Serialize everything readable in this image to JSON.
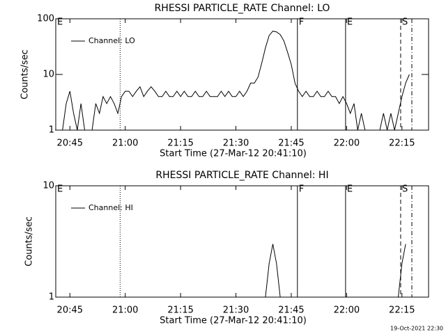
{
  "chart_data": [
    {
      "type": "line",
      "title": "RHESSI PARTICLE_RATE Channel: LO",
      "xlabel": "Start Time (27-Mar-12 20:41:10)",
      "ylabel": "Counts/sec",
      "log_y": true,
      "ylim": [
        1,
        100
      ],
      "yticks": [
        1,
        10,
        100
      ],
      "xlim": [
        "20:41:10",
        "22:22:13"
      ],
      "xticks": [
        "20:45",
        "21:00",
        "21:15",
        "21:30",
        "21:45",
        "22:00",
        "22:15"
      ],
      "legend": "upper left",
      "x": [
        "20:41",
        "20:42",
        "20:43",
        "20:44",
        "20:45",
        "20:46",
        "20:47",
        "20:48",
        "20:49",
        "20:50",
        "20:51",
        "20:52",
        "20:53",
        "20:54",
        "20:55",
        "20:56",
        "20:57",
        "20:58",
        "20:59",
        "21:00",
        "21:01",
        "21:02",
        "21:03",
        "21:04",
        "21:05",
        "21:06",
        "21:07",
        "21:08",
        "21:09",
        "21:10",
        "21:11",
        "21:12",
        "21:13",
        "21:14",
        "21:15",
        "21:16",
        "21:17",
        "21:18",
        "21:19",
        "21:20",
        "21:21",
        "21:22",
        "21:23",
        "21:24",
        "21:25",
        "21:26",
        "21:27",
        "21:28",
        "21:29",
        "21:30",
        "21:31",
        "21:32",
        "21:33",
        "21:34",
        "21:35",
        "21:36",
        "21:37",
        "21:38",
        "21:39",
        "21:40",
        "21:41",
        "21:42",
        "21:43",
        "21:44",
        "21:45",
        "21:46",
        "21:47",
        "21:48",
        "21:49",
        "21:50",
        "21:51",
        "21:52",
        "21:53",
        "21:54",
        "21:55",
        "21:56",
        "21:57",
        "21:58",
        "21:59",
        "22:00",
        "22:01",
        "22:02",
        "22:03",
        "22:04",
        "22:05",
        "22:06",
        "22:07",
        "22:08",
        "22:09",
        "22:10",
        "22:11",
        "22:12",
        "22:13",
        "22:14",
        "22:15",
        "22:16",
        "22:17"
      ],
      "series": [
        {
          "name": "Channel: LO",
          "color": "#000000",
          "values": [
            1,
            1,
            1,
            3,
            5,
            2,
            1,
            3,
            1,
            1,
            1,
            3,
            2,
            4,
            3,
            4,
            3,
            2,
            4,
            5,
            5,
            4,
            5,
            6,
            4,
            5,
            6,
            5,
            4,
            4,
            5,
            4,
            4,
            5,
            4,
            5,
            4,
            4,
            5,
            4,
            4,
            5,
            4,
            4,
            4,
            5,
            4,
            5,
            4,
            4,
            5,
            4,
            5,
            7,
            7,
            9,
            16,
            30,
            50,
            60,
            58,
            52,
            40,
            25,
            15,
            7,
            5,
            4,
            5,
            4,
            4,
            5,
            4,
            4,
            5,
            4,
            4,
            3,
            4,
            3,
            2,
            3,
            1,
            2,
            1,
            1,
            1,
            1,
            1,
            2,
            1,
            2,
            1,
            2,
            4,
            7,
            10
          ]
        }
      ],
      "vlines": [
        {
          "x": "20:58:37",
          "style": "dotted"
        },
        {
          "x": "21:46:40",
          "style": "solid"
        },
        {
          "x": "21:59:43",
          "style": "solid"
        },
        {
          "x": "22:14:39",
          "style": "dashed"
        },
        {
          "x": "22:17:41",
          "style": "dashdot"
        }
      ],
      "annotations": [
        {
          "x": "20:41:10",
          "label": "E"
        },
        {
          "x": "21:46:40",
          "label": "F"
        },
        {
          "x": "21:59:43",
          "label": "E"
        },
        {
          "x": "22:14:39",
          "label": "S"
        }
      ]
    },
    {
      "type": "line",
      "title": "RHESSI PARTICLE_RATE Channel: HI",
      "xlabel": "Start Time (27-Mar-12 20:41:10)",
      "ylabel": "Counts/sec",
      "log_y": true,
      "ylim": [
        1,
        10
      ],
      "yticks": [
        1,
        10
      ],
      "xlim": [
        "20:41:10",
        "22:22:13"
      ],
      "xticks": [
        "20:45",
        "21:00",
        "21:15",
        "21:30",
        "21:45",
        "22:00",
        "22:15"
      ],
      "legend": "upper left",
      "x": [
        "20:41:10",
        "21:38",
        "21:39",
        "21:40",
        "21:41",
        "21:42",
        "22:14",
        "22:15",
        "22:16"
      ],
      "series": [
        {
          "name": "Channel: HI",
          "color": "#000000",
          "values": [
            1,
            1,
            2,
            3,
            2,
            1,
            1,
            2,
            3
          ]
        }
      ],
      "vlines": [
        {
          "x": "20:58:37",
          "style": "dotted"
        },
        {
          "x": "21:46:40",
          "style": "solid"
        },
        {
          "x": "21:59:43",
          "style": "solid"
        },
        {
          "x": "22:14:39",
          "style": "dashed"
        },
        {
          "x": "22:17:41",
          "style": "dashdot"
        }
      ],
      "annotations": [
        {
          "x": "20:41:10",
          "label": "E"
        },
        {
          "x": "21:46:40",
          "label": "F"
        },
        {
          "x": "21:59:43",
          "label": "E"
        },
        {
          "x": "22:14:39",
          "label": "S"
        }
      ]
    }
  ],
  "footer": "19-Oct-2021 22:30"
}
